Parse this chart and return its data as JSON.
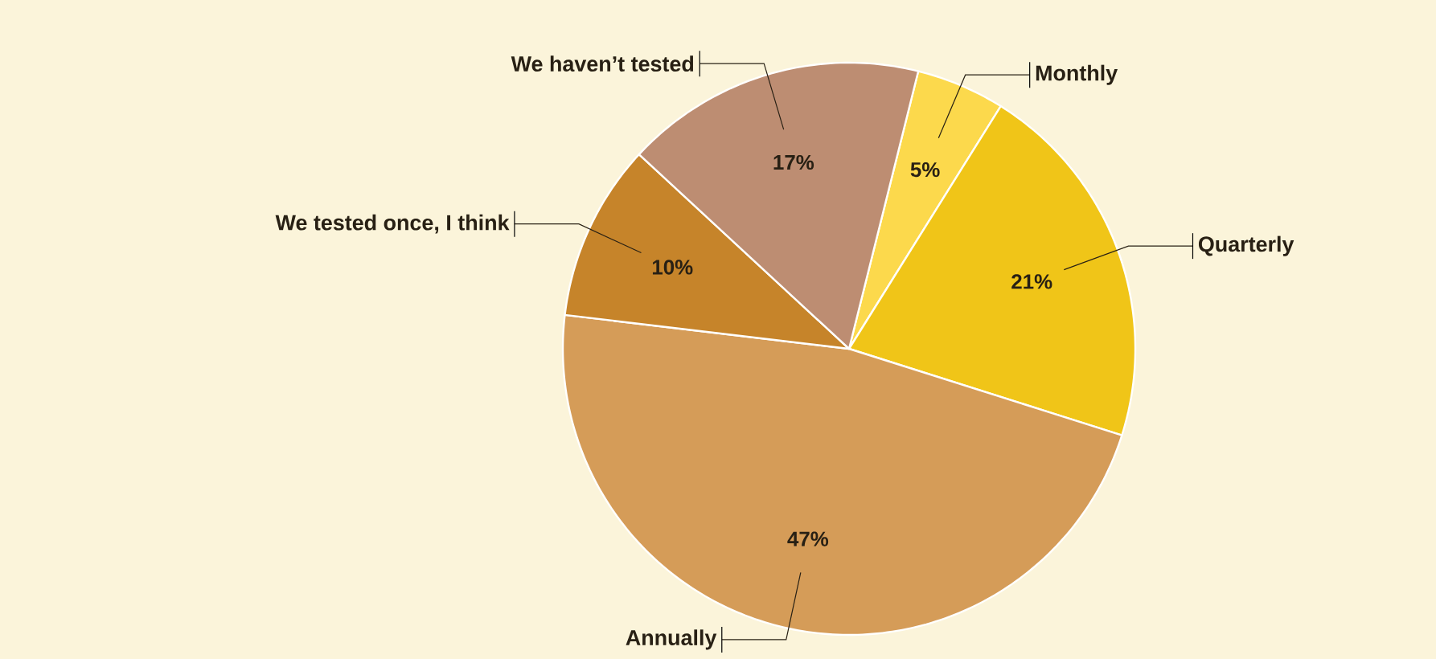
{
  "chart_data": {
    "type": "pie",
    "categories": [
      "Monthly",
      "Quarterly",
      "Annually",
      "We tested once, I think",
      "We haven’t tested"
    ],
    "values": [
      5,
      21,
      47,
      10,
      17
    ],
    "value_labels": [
      "5%",
      "21%",
      "47%",
      "10%",
      "17%"
    ],
    "colors": [
      "#fcd94c",
      "#f0c518",
      "#d59c58",
      "#c6842a",
      "#bd8d72"
    ]
  }
}
